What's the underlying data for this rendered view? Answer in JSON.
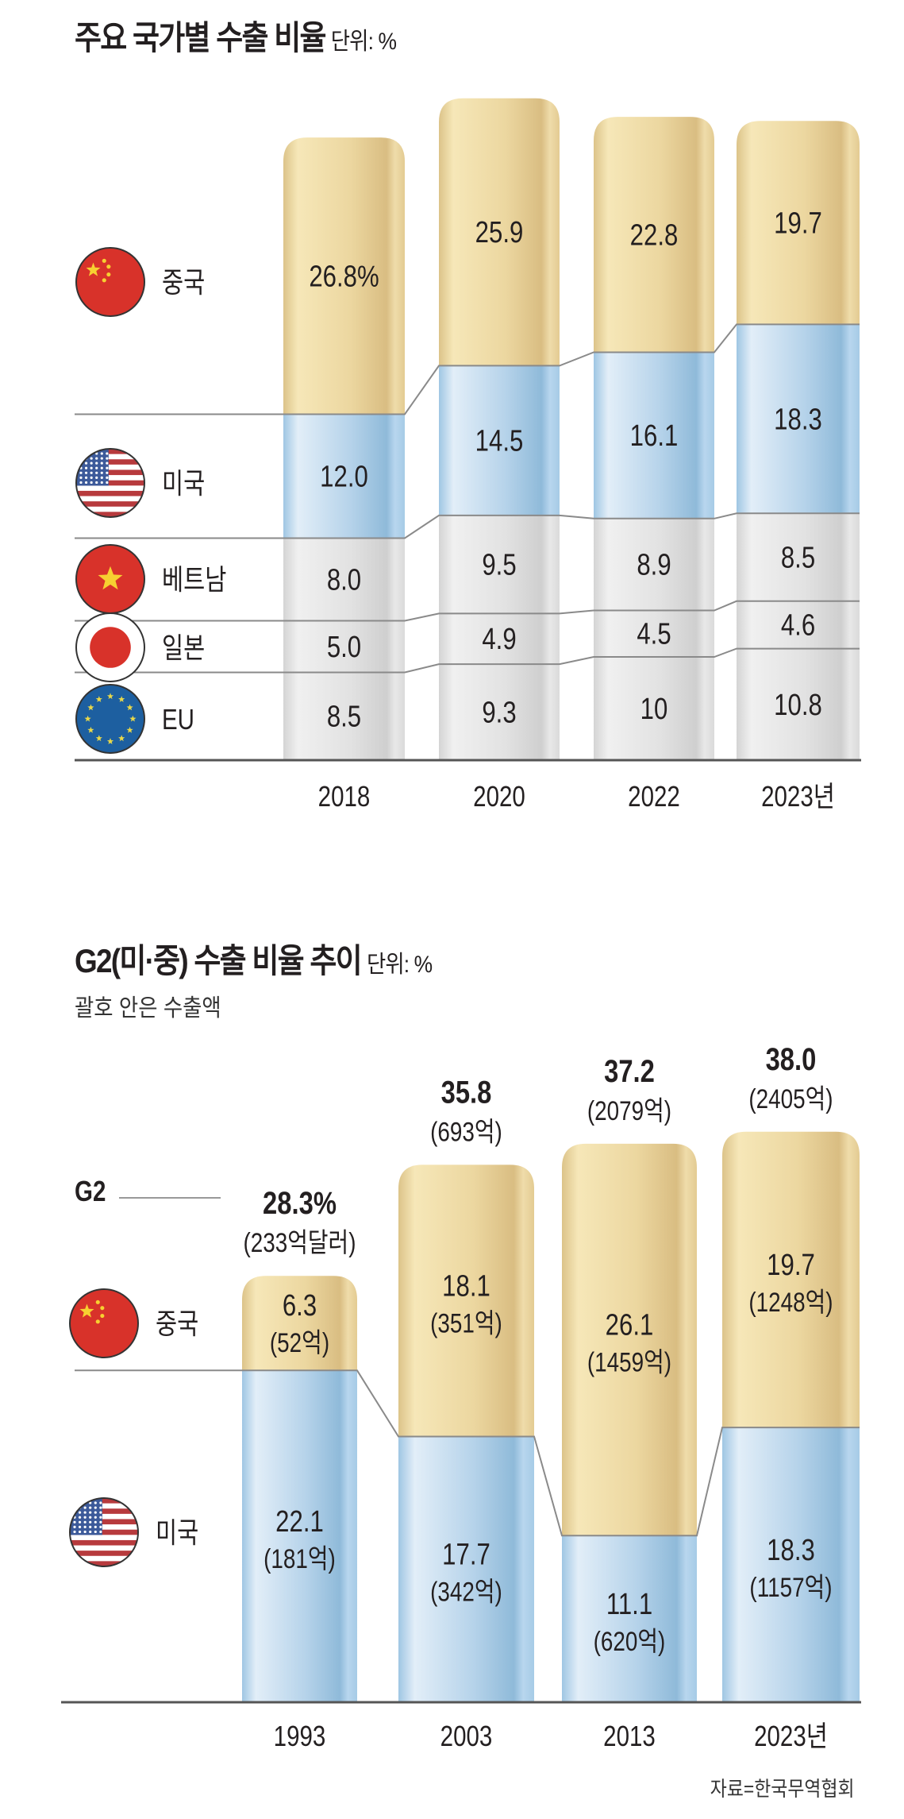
{
  "colors": {
    "china": "#e9d39a",
    "usa": "#a9cde6",
    "others": "#dcdcdc",
    "axis": "#555555",
    "text": "#231f20"
  },
  "chart_data": [
    {
      "type": "bar",
      "stacked": true,
      "title": "주요 국가별 수출 비율",
      "unit": "단위: %",
      "categories": [
        "2018",
        "2020",
        "2022",
        "2023년"
      ],
      "series": [
        {
          "name": "EU",
          "flag": "eu-flag-icon",
          "values": [
            8.5,
            9.3,
            10,
            10.8
          ],
          "labels": [
            "8.5",
            "9.3",
            "10",
            "10.8"
          ]
        },
        {
          "name": "일본",
          "flag": "japan-flag-icon",
          "values": [
            5.0,
            4.9,
            4.5,
            4.6
          ],
          "labels": [
            "5.0",
            "4.9",
            "4.5",
            "4.6"
          ]
        },
        {
          "name": "베트남",
          "flag": "vietnam-flag-icon",
          "values": [
            8.0,
            9.5,
            8.9,
            8.5
          ],
          "labels": [
            "8.0",
            "9.5",
            "8.9",
            "8.5"
          ]
        },
        {
          "name": "미국",
          "flag": "usa-flag-icon",
          "values": [
            12.0,
            14.5,
            16.1,
            18.3
          ],
          "labels": [
            "12.0",
            "14.5",
            "16.1",
            "18.3"
          ]
        },
        {
          "name": "중국",
          "flag": "china-flag-icon",
          "values": [
            26.8,
            25.9,
            22.8,
            19.7
          ],
          "labels": [
            "26.8%",
            "25.9",
            "22.8",
            "19.7"
          ]
        }
      ],
      "xlabel": "",
      "ylabel": "",
      "grid": false,
      "legend": "left"
    },
    {
      "type": "bar",
      "stacked": true,
      "title": "G2(미·중) 수출 비율 추이",
      "unit": "단위: %",
      "subtitle": "괄호 안은 수출액",
      "categories": [
        "1993",
        "2003",
        "2013",
        "2023년"
      ],
      "series": [
        {
          "name": "미국",
          "flag": "usa-flag-icon",
          "values": [
            22.1,
            17.7,
            11.1,
            18.3
          ],
          "labels": [
            "22.1",
            "17.7",
            "11.1",
            "18.3"
          ],
          "amounts": [
            "(181억)",
            "(342억)",
            "(620억)",
            "(1157억)"
          ]
        },
        {
          "name": "중국",
          "flag": "china-flag-icon",
          "values": [
            6.3,
            18.1,
            26.1,
            19.7
          ],
          "labels": [
            "6.3",
            "18.1",
            "26.1",
            "19.7"
          ],
          "amounts": [
            "(52억)",
            "(351억)",
            "(1459억)",
            "(1248억)"
          ]
        }
      ],
      "totals": {
        "name": "G2",
        "values": [
          28.3,
          35.8,
          37.2,
          38.0
        ],
        "labels": [
          "28.3%",
          "35.8",
          "37.2",
          "38.0"
        ],
        "amounts": [
          "(233억달러)",
          "(693억)",
          "(2079억)",
          "(2405억)"
        ]
      },
      "xlabel": "",
      "ylabel": "",
      "grid": false,
      "legend": "left"
    }
  ],
  "source": "자료=한국무역협회"
}
